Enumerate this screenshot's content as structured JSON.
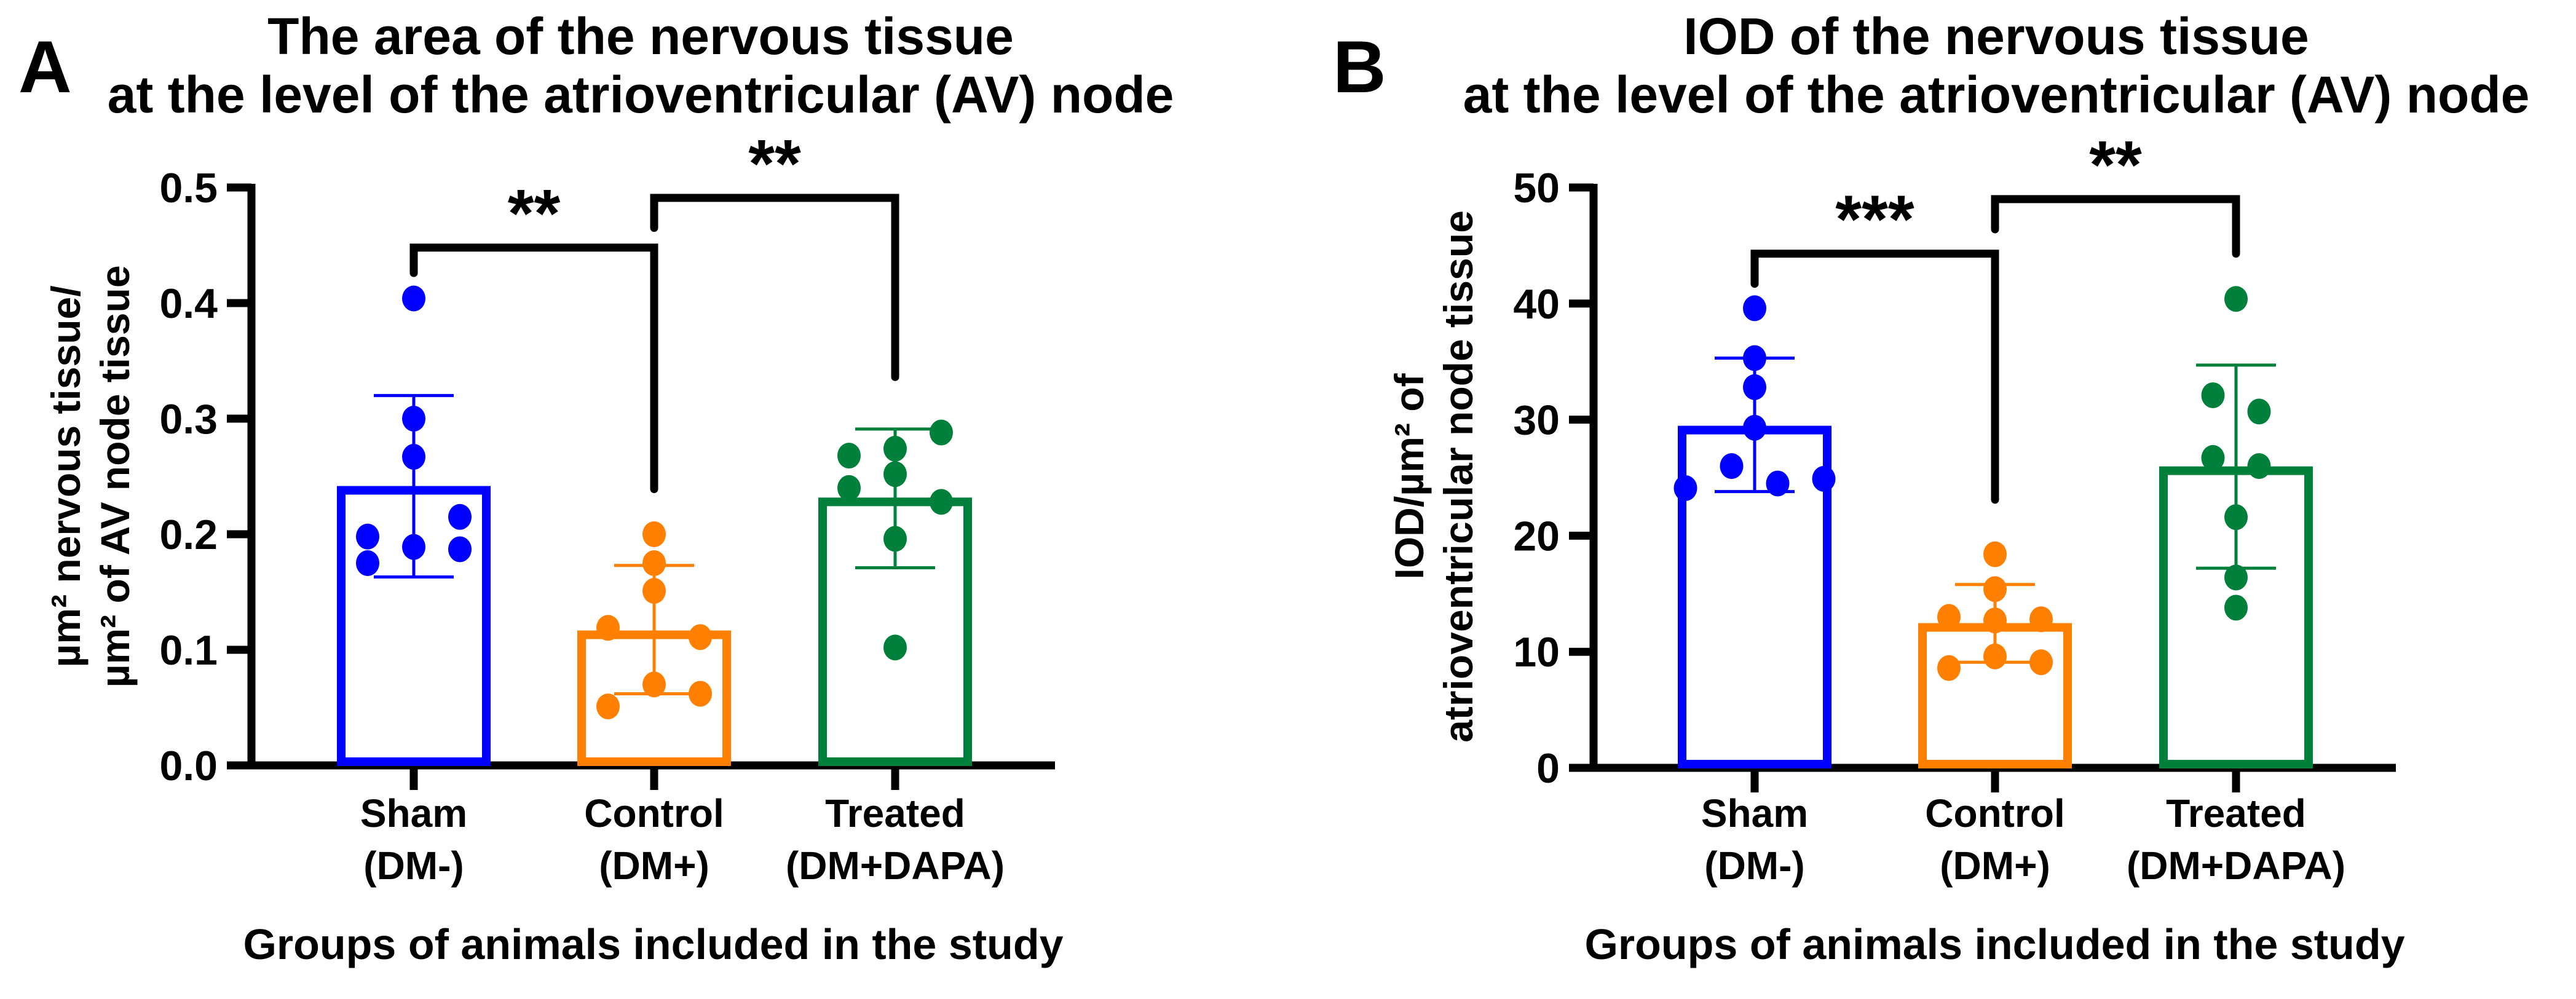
{
  "colors": {
    "sham": "#0000ff",
    "control": "#ff8000",
    "treated": "#00803a",
    "axis": "#000000"
  },
  "chart_data": [
    {
      "panel_letter": "A",
      "type": "bar",
      "title_lines": [
        "The area of the nervous tissue",
        "at the level of the atrioventricular (AV) node"
      ],
      "ylabel_lines": [
        "µm² nervous tissue/",
        "µm² of AV node tissue"
      ],
      "xlabel": "Groups of animals included in the study",
      "ylim": [
        0,
        0.5
      ],
      "yticks": [
        "0.0",
        "0.1",
        "0.2",
        "0.3",
        "0.4",
        "0.5"
      ],
      "ytick_values": [
        0,
        0.1,
        0.2,
        0.3,
        0.4,
        0.5
      ],
      "categories": [
        [
          "Sham",
          "(DM-)"
        ],
        [
          "Control",
          "(DM+)"
        ],
        [
          "Treated",
          "(DM+DAPA)"
        ]
      ],
      "series": [
        {
          "name": "Sham (DM-)",
          "mean": 0.238,
          "sd_upper": 0.32,
          "sd_lower": 0.163,
          "points": [
            0.404,
            0.3,
            0.267,
            0.198,
            0.189,
            0.215,
            0.187,
            0.175
          ]
        },
        {
          "name": "Control (DM+)",
          "mean": 0.113,
          "sd_upper": 0.173,
          "sd_lower": 0.062,
          "points": [
            0.2,
            0.175,
            0.151,
            0.119,
            0.111,
            0.07,
            0.062,
            0.051
          ]
        },
        {
          "name": "Treated (DM+DAPA)",
          "mean": 0.228,
          "sd_upper": 0.291,
          "sd_lower": 0.171,
          "points": [
            0.288,
            0.268,
            0.274,
            0.252,
            0.24,
            0.228,
            0.196,
            0.102
          ]
        }
      ],
      "significance": [
        {
          "from": 0,
          "to": 1,
          "label": "**",
          "y": 0.448,
          "leg_from": 0.426,
          "leg_to": 0.239
        },
        {
          "from": 1,
          "to": 2,
          "label": "**",
          "y": 0.491,
          "leg_from": 0.465,
          "leg_to": 0.336
        }
      ]
    },
    {
      "panel_letter": "B",
      "type": "bar",
      "title_lines": [
        "IOD of the nervous tissue",
        "at the level of the atrioventricular (AV) node"
      ],
      "ylabel_lines": [
        "IOD/µm² of",
        "atrioventricular node tissue"
      ],
      "xlabel": "Groups of animals included in the study",
      "ylim": [
        0,
        50
      ],
      "yticks": [
        "0",
        "10",
        "20",
        "30",
        "40",
        "50"
      ],
      "ytick_values": [
        0,
        10,
        20,
        30,
        40,
        50
      ],
      "categories": [
        [
          "Sham",
          "(DM-)"
        ],
        [
          "Control",
          "(DM+)"
        ],
        [
          "Treated",
          "(DM+DAPA)"
        ]
      ],
      "series": [
        {
          "name": "Sham (DM-)",
          "mean": 29.1,
          "sd_upper": 35.3,
          "sd_lower": 23.8,
          "points": [
            39.6,
            35.3,
            32.8,
            29.3,
            26.0,
            24.1,
            24.5,
            24.9
          ]
        },
        {
          "name": "Control (DM+)",
          "mean": 12.1,
          "sd_upper": 15.8,
          "sd_lower": 9.1,
          "points": [
            18.4,
            15.4,
            13.0,
            12.7,
            12.8,
            9.6,
            8.6,
            9.1
          ]
        },
        {
          "name": "Treated (DM+DAPA)",
          "mean": 25.6,
          "sd_upper": 34.7,
          "sd_lower": 17.2,
          "points": [
            40.4,
            32.1,
            30.7,
            26.7,
            26.0,
            21.6,
            16.4,
            13.8
          ]
        }
      ],
      "significance": [
        {
          "from": 0,
          "to": 1,
          "label": "***",
          "y": 44.3,
          "leg_from": 41.7,
          "leg_to": 23.1
        },
        {
          "from": 1,
          "to": 2,
          "label": "**",
          "y": 49.0,
          "leg_from": 46.4,
          "leg_to": 44.3
        }
      ]
    }
  ]
}
